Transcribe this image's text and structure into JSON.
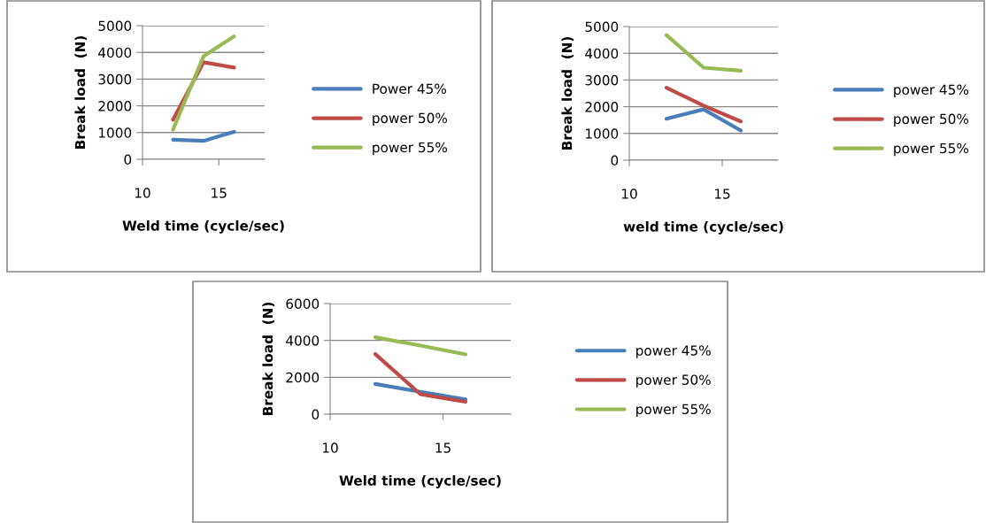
{
  "chart_data": [
    {
      "type": "line",
      "xlabel": "Weld time (cycle/sec)",
      "ylabel": "Break load  (N)",
      "xlim": [
        10,
        18
      ],
      "xticks": [
        10,
        15
      ],
      "ylim": [
        0,
        5000
      ],
      "yticks": [
        0,
        1000,
        2000,
        3000,
        4000,
        5000
      ],
      "grid": "y",
      "legend": "right",
      "x": [
        12,
        14,
        16
      ],
      "series": [
        {
          "name": "Power 45%",
          "color": "#4a7ebb",
          "values": [
            730,
            690,
            1030
          ]
        },
        {
          "name": "power 50%",
          "color": "#be4b48",
          "values": [
            1480,
            3630,
            3430
          ]
        },
        {
          "name": "power 55%",
          "color": "#98b954",
          "values": [
            1110,
            3860,
            4600
          ]
        }
      ]
    },
    {
      "type": "line",
      "xlabel": "weld time (cycle/sec)",
      "ylabel": "Break load  (N)",
      "xlim": [
        10,
        18
      ],
      "xticks": [
        10,
        15
      ],
      "ylim": [
        0,
        5000
      ],
      "yticks": [
        0,
        1000,
        2000,
        3000,
        4000,
        5000
      ],
      "grid": "y",
      "legend": "right",
      "x": [
        12,
        14,
        16
      ],
      "series": [
        {
          "name": "power 45%",
          "color": "#4a7ebb",
          "values": [
            1550,
            1900,
            1110
          ]
        },
        {
          "name": "power 50%",
          "color": "#be4b48",
          "values": [
            2710,
            2040,
            1450
          ]
        },
        {
          "name": "power 55%",
          "color": "#98b954",
          "values": [
            4680,
            3460,
            3350
          ]
        }
      ]
    },
    {
      "type": "line",
      "xlabel": "Weld time (cycle/sec)",
      "ylabel": "Break load  (N)",
      "xlim": [
        10,
        18
      ],
      "xticks": [
        10,
        15
      ],
      "ylim": [
        0,
        6000
      ],
      "yticks": [
        0,
        2000,
        4000,
        6000
      ],
      "grid": "y",
      "legend": "right",
      "x": [
        12,
        14,
        16
      ],
      "series": [
        {
          "name": "power 45%",
          "color": "#4a7ebb",
          "values": [
            1640,
            1210,
            800
          ]
        },
        {
          "name": "power 50%",
          "color": "#be4b48",
          "values": [
            3260,
            1080,
            670
          ]
        },
        {
          "name": "power 55%",
          "color": "#98b954",
          "values": [
            4170,
            3720,
            3240
          ]
        }
      ]
    }
  ]
}
